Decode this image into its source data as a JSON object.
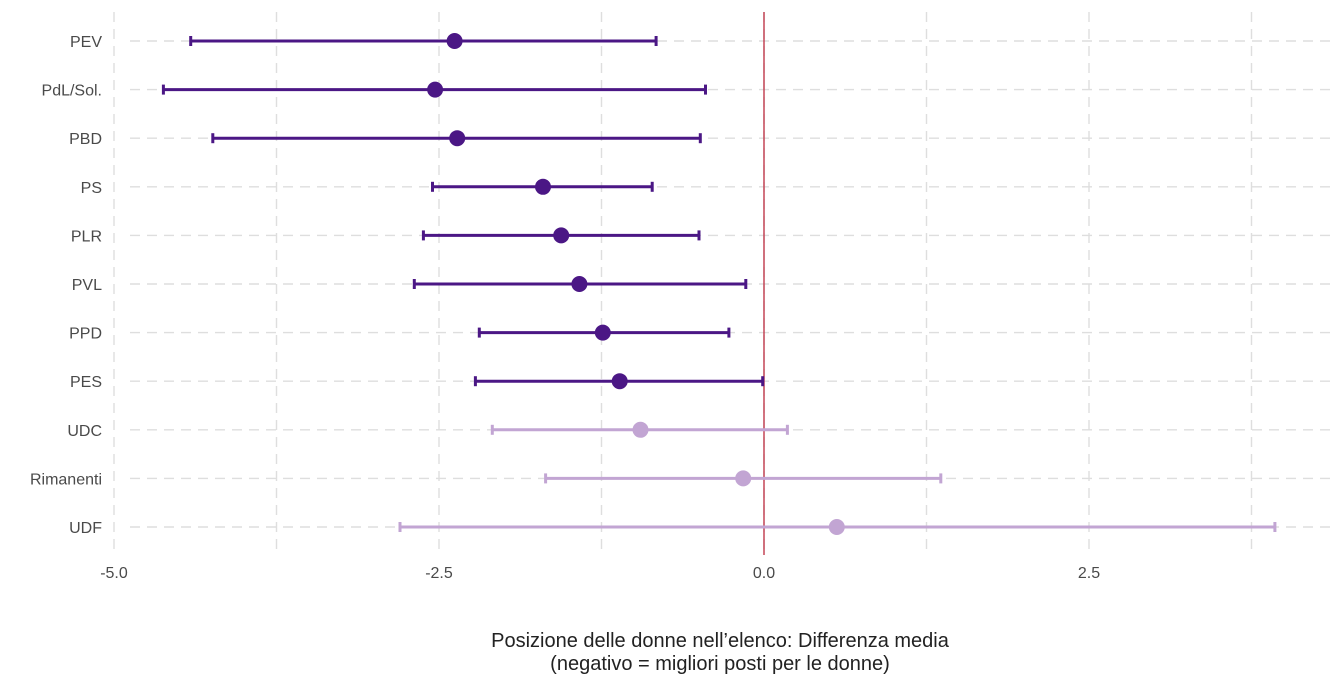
{
  "chart_data": {
    "type": "errorbar",
    "title": "",
    "xlabel_line1": "Posizione delle donne nell’elenco: Differenza media",
    "xlabel_line2": "(negativo = migliori posti per le donne)",
    "ylabel": "",
    "xlim": [
      -5.0,
      4.0
    ],
    "xticks": [
      -5.0,
      -2.5,
      0.0,
      2.5
    ],
    "xtick_labels": [
      "-5.0",
      "-2.5",
      "0.0",
      "2.5"
    ],
    "grid": true,
    "reference_line": 0,
    "colors": {
      "significant": "#4b1785",
      "not_significant": "#c2a5d3",
      "reference_line": "#c0394b",
      "grid": "#dedede"
    },
    "categories": [
      "PEV",
      "PdL/Sol.",
      "PBD",
      "PS",
      "PLR",
      "PVL",
      "PPD",
      "PES",
      "UDC",
      "Rimanenti",
      "UDF"
    ],
    "points": [
      {
        "label": "PEV",
        "mean": -2.38,
        "low": -4.41,
        "high": -0.83,
        "significant": true
      },
      {
        "label": "PdL/Sol.",
        "mean": -2.53,
        "low": -4.62,
        "high": -0.45,
        "significant": true
      },
      {
        "label": "PBD",
        "mean": -2.36,
        "low": -4.24,
        "high": -0.49,
        "significant": true
      },
      {
        "label": "PS",
        "mean": -1.7,
        "low": -2.55,
        "high": -0.86,
        "significant": true
      },
      {
        "label": "PLR",
        "mean": -1.56,
        "low": -2.62,
        "high": -0.5,
        "significant": true
      },
      {
        "label": "PVL",
        "mean": -1.42,
        "low": -2.69,
        "high": -0.14,
        "significant": true
      },
      {
        "label": "PPD",
        "mean": -1.24,
        "low": -2.19,
        "high": -0.27,
        "significant": true
      },
      {
        "label": "PES",
        "mean": -1.11,
        "low": -2.22,
        "high": -0.01,
        "significant": true
      },
      {
        "label": "UDC",
        "mean": -0.95,
        "low": -2.09,
        "high": 0.18,
        "significant": false
      },
      {
        "label": "Rimanenti",
        "mean": -0.16,
        "low": -1.68,
        "high": 1.36,
        "significant": false
      },
      {
        "label": "UDF",
        "mean": 0.56,
        "low": -2.8,
        "high": 3.93,
        "significant": false
      }
    ]
  }
}
